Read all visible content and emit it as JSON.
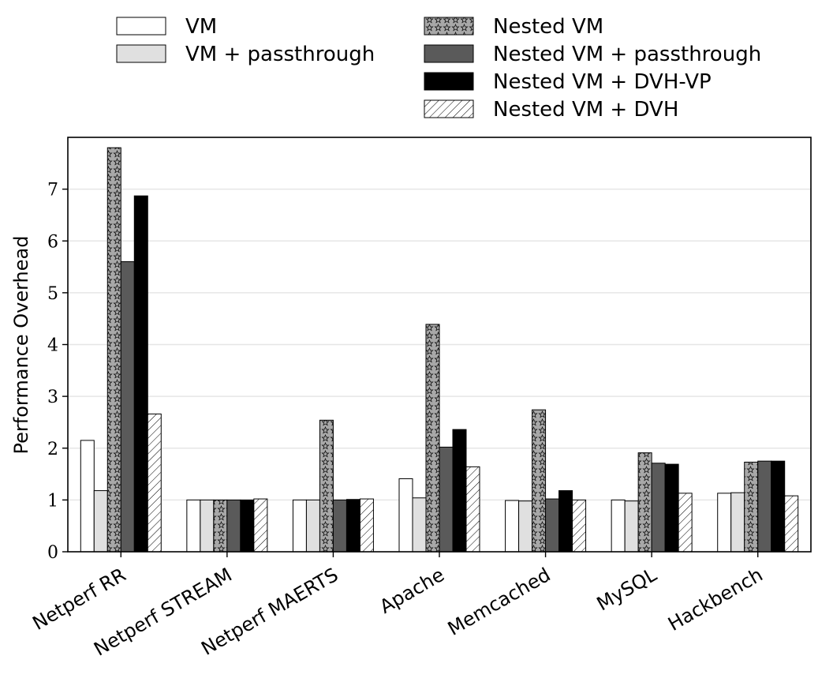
{
  "chart_data": {
    "type": "bar",
    "title": "",
    "xlabel": "",
    "ylabel": "Performance Overhead",
    "ylim": [
      0,
      8
    ],
    "yticks": [
      0,
      1,
      2,
      3,
      4,
      5,
      6,
      7
    ],
    "grid": "horizontal",
    "legend_position": "top",
    "categories": [
      "Netperf RR",
      "Netperf STREAM",
      "Netperf MAERTS",
      "Apache",
      "Memcached",
      "MySQL",
      "Hackbench"
    ],
    "series": [
      {
        "name": "VM",
        "fill": "#ffffff",
        "pattern": "none",
        "values": [
          2.15,
          1.0,
          1.0,
          1.41,
          0.99,
          1.0,
          1.13
        ]
      },
      {
        "name": "VM + passthrough",
        "fill": "#e0e0e0",
        "pattern": "none",
        "values": [
          1.18,
          1.0,
          1.0,
          1.04,
          0.98,
          0.98,
          1.14
        ]
      },
      {
        "name": "Nested VM",
        "fill": "#a8a8a8",
        "pattern": "stars",
        "values": [
          7.8,
          1.0,
          2.54,
          4.39,
          2.74,
          1.91,
          1.73
        ]
      },
      {
        "name": "Nested VM + passthrough",
        "fill": "#5a5a5a",
        "pattern": "none",
        "values": [
          5.6,
          1.0,
          1.0,
          2.02,
          1.02,
          1.71,
          1.75
        ]
      },
      {
        "name": "Nested VM + DVH-VP",
        "fill": "#000000",
        "pattern": "none",
        "values": [
          6.87,
          1.0,
          1.01,
          2.36,
          1.18,
          1.69,
          1.75
        ]
      },
      {
        "name": "Nested VM + DVH",
        "fill": "#ffffff",
        "pattern": "hatch",
        "values": [
          2.66,
          1.02,
          1.02,
          1.64,
          1.0,
          1.13,
          1.08
        ]
      }
    ]
  }
}
